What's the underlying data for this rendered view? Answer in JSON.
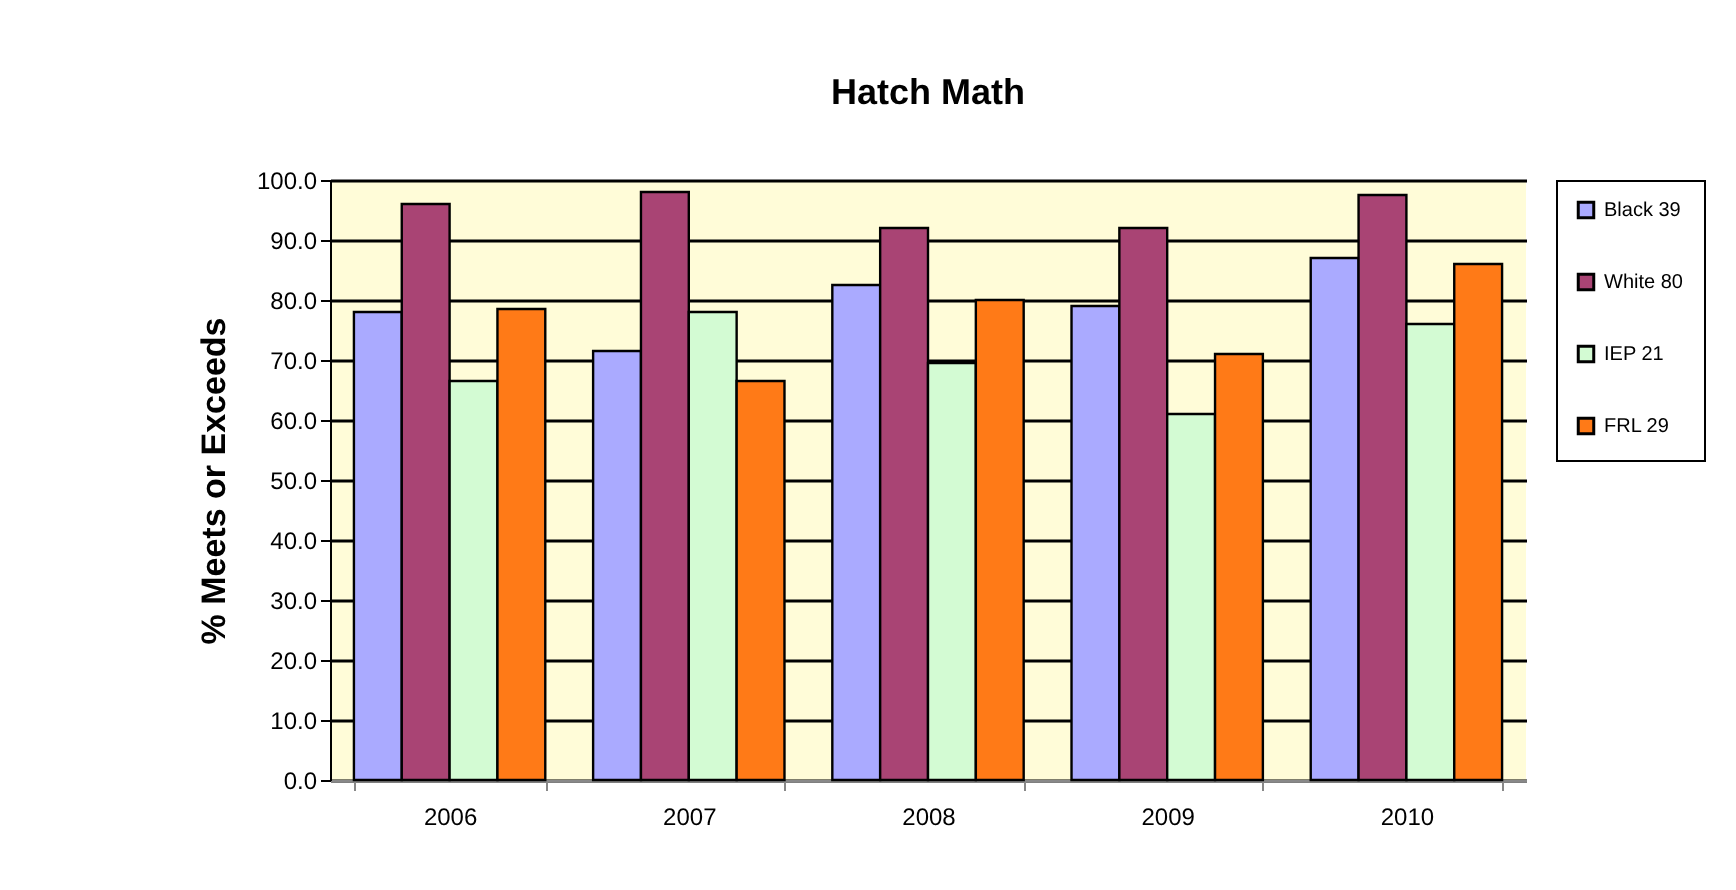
{
  "chart_data": {
    "type": "bar",
    "title": "Hatch Math",
    "ylabel": "% Meets or Exceeds",
    "categories": [
      "2006",
      "2007",
      "2008",
      "2009",
      "2010"
    ],
    "series": [
      {
        "name": "Black 39",
        "color": "#aaaaff",
        "values": [
          78,
          71.5,
          82.5,
          79,
          87
        ]
      },
      {
        "name": "White 80",
        "color": "#a94474",
        "values": [
          96,
          98,
          92,
          92,
          97.5
        ]
      },
      {
        "name": "IEP 21",
        "color": "#d3fbd3",
        "values": [
          66.5,
          78,
          69.5,
          61,
          76
        ]
      },
      {
        "name": "FRL 29",
        "color": "#ff7a17",
        "values": [
          78.5,
          66.5,
          80,
          71,
          86
        ]
      }
    ],
    "ylim": [
      0,
      100
    ],
    "yticks": [
      {
        "value": 0,
        "label": "0.0"
      },
      {
        "value": 10,
        "label": "10.0"
      },
      {
        "value": 20,
        "label": "20.0"
      },
      {
        "value": 30,
        "label": "30.0"
      },
      {
        "value": 40,
        "label": "40.0"
      },
      {
        "value": 50,
        "label": "50.0"
      },
      {
        "value": 60,
        "label": "60.0"
      },
      {
        "value": 70,
        "label": "70.0"
      },
      {
        "value": 80,
        "label": "80.0"
      },
      {
        "value": 90,
        "label": "90.0"
      },
      {
        "value": 100,
        "label": "100.0"
      }
    ],
    "grid": "y",
    "legend": "right"
  }
}
